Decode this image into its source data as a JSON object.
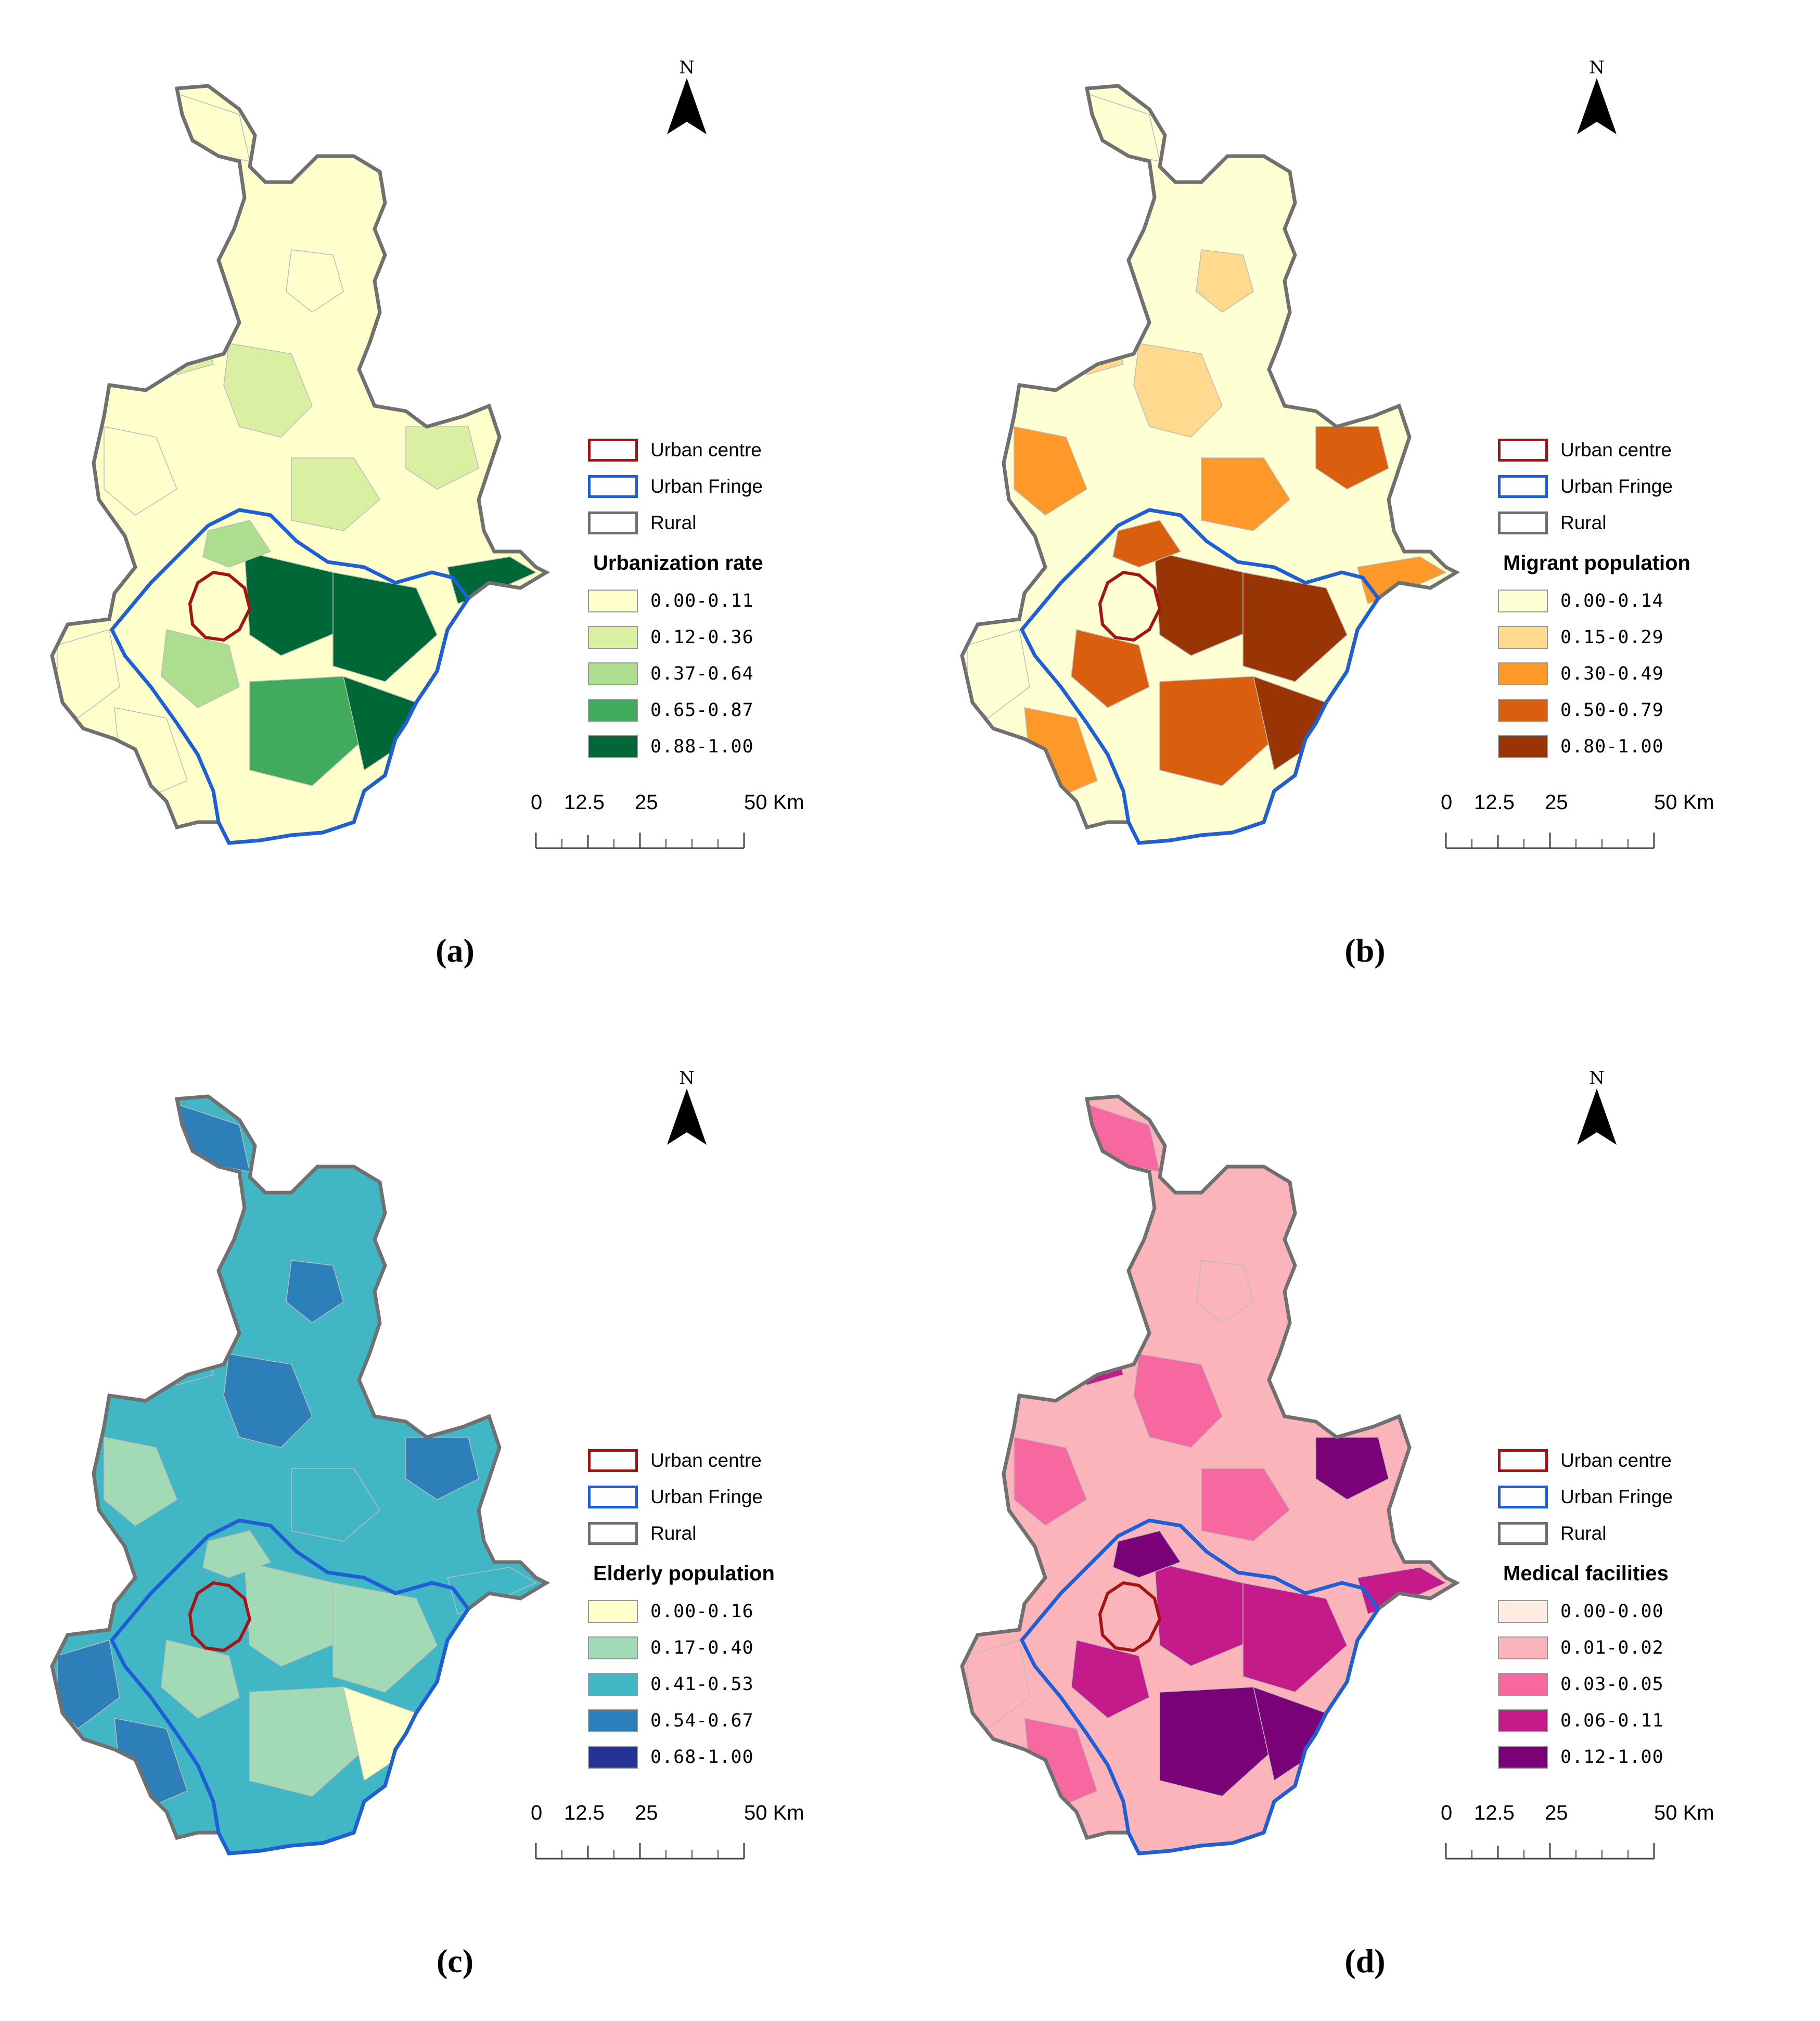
{
  "figure": {
    "north_letter": "N",
    "boundary_legend": [
      "Urban centre",
      "Urban Fringe",
      "Rural"
    ],
    "boundary_colors": {
      "urban_centre": "#a31515",
      "urban_fringe": "#1f5fd6",
      "rural": "#707070"
    },
    "scale_bar": {
      "label_0": "0",
      "label_1": "12.5",
      "label_2": "25",
      "label_3": "50 Km"
    }
  },
  "panels": [
    {
      "caption": "(a)",
      "legend_title": "Urbanization rate",
      "classes": [
        "0.00-0.11",
        "0.12-0.36",
        "0.37-0.64",
        "0.65-0.87",
        "0.88-1.00"
      ],
      "colors": [
        "#ffffcc",
        "#d9f0a3",
        "#addd8e",
        "#41ab5d",
        "#006837"
      ]
    },
    {
      "caption": "(b)",
      "legend_title": "Migrant population",
      "classes": [
        "0.00-0.14",
        "0.15-0.29",
        "0.30-0.49",
        "0.50-0.79",
        "0.80-1.00"
      ],
      "colors": [
        "#ffffd4",
        "#fed98e",
        "#fe9929",
        "#d95f0e",
        "#993404"
      ]
    },
    {
      "caption": "(c)",
      "legend_title": "Elderly population",
      "classes": [
        "0.00-0.16",
        "0.17-0.40",
        "0.41-0.53",
        "0.54-0.67",
        "0.68-1.00"
      ],
      "colors": [
        "#ffffcc",
        "#a1dab4",
        "#41b6c4",
        "#2c7fb8",
        "#253494"
      ]
    },
    {
      "caption": "(d)",
      "legend_title": "Medical facilities",
      "classes": [
        "0.00-0.00",
        "0.01-0.02",
        "0.03-0.05",
        "0.06-0.11",
        "0.12-1.00"
      ],
      "colors": [
        "#feebe2",
        "#fbb4b9",
        "#f768a1",
        "#c51b8a",
        "#7a0177"
      ]
    }
  ]
}
